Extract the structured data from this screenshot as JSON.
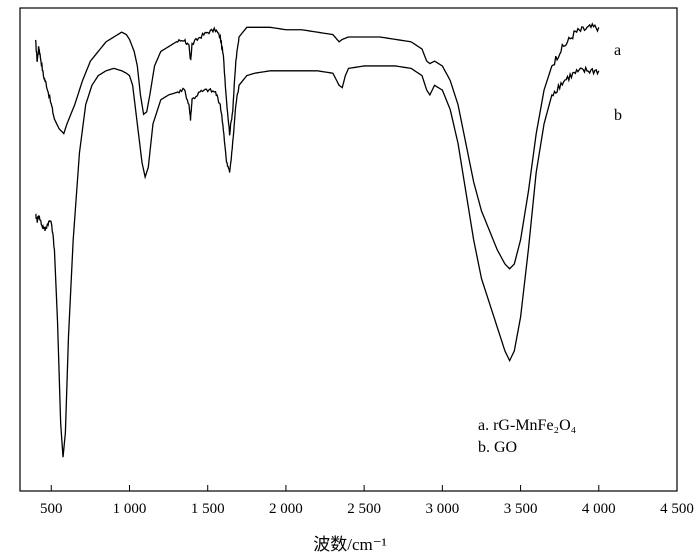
{
  "chart_data": {
    "type": "line",
    "title": "",
    "xlabel": "波数/cm⁻¹",
    "ylabel": "",
    "xlim": [
      300,
      4500
    ],
    "ylim": [
      0,
      100
    ],
    "grid": false,
    "x_ticks": [
      {
        "value": 500,
        "label": "500"
      },
      {
        "value": 1000,
        "label": "1 000"
      },
      {
        "value": 1500,
        "label": "1 500"
      },
      {
        "value": 2000,
        "label": "2 000"
      },
      {
        "value": 2500,
        "label": "2 500"
      },
      {
        "value": 3000,
        "label": "3 000"
      },
      {
        "value": 3500,
        "label": "3 500"
      },
      {
        "value": 4000,
        "label": "4 000"
      },
      {
        "value": 4500,
        "label": "4 500"
      }
    ],
    "legend": {
      "position": "bottom-right",
      "entries": [
        "a. rG-MnFe₂O₄",
        "b. GO"
      ]
    },
    "series": [
      {
        "label": "a",
        "points": [
          [
            400,
            93
          ],
          [
            410,
            89
          ],
          [
            420,
            92
          ],
          [
            430,
            90
          ],
          [
            450,
            86
          ],
          [
            470,
            84
          ],
          [
            500,
            80
          ],
          [
            520,
            77
          ],
          [
            550,
            75
          ],
          [
            580,
            74
          ],
          [
            600,
            76
          ],
          [
            650,
            80
          ],
          [
            700,
            85
          ],
          [
            750,
            89
          ],
          [
            800,
            91
          ],
          [
            850,
            93
          ],
          [
            900,
            94
          ],
          [
            950,
            95
          ],
          [
            980,
            94.5
          ],
          [
            1000,
            93.5
          ],
          [
            1030,
            91
          ],
          [
            1050,
            88
          ],
          [
            1070,
            82
          ],
          [
            1090,
            78
          ],
          [
            1110,
            78.5
          ],
          [
            1130,
            82
          ],
          [
            1160,
            88
          ],
          [
            1200,
            91
          ],
          [
            1250,
            92
          ],
          [
            1300,
            93
          ],
          [
            1350,
            93.5
          ],
          [
            1380,
            92
          ],
          [
            1390,
            89
          ],
          [
            1400,
            92.5
          ],
          [
            1450,
            94
          ],
          [
            1500,
            95
          ],
          [
            1550,
            95.5
          ],
          [
            1580,
            94
          ],
          [
            1600,
            90
          ],
          [
            1620,
            81
          ],
          [
            1640,
            74
          ],
          [
            1660,
            79
          ],
          [
            1680,
            89
          ],
          [
            1700,
            94
          ],
          [
            1750,
            96
          ],
          [
            1800,
            96
          ],
          [
            1900,
            96
          ],
          [
            2000,
            95.5
          ],
          [
            2100,
            95.5
          ],
          [
            2200,
            95
          ],
          [
            2300,
            94.5
          ],
          [
            2340,
            93
          ],
          [
            2360,
            93.5
          ],
          [
            2400,
            94
          ],
          [
            2500,
            94
          ],
          [
            2600,
            94
          ],
          [
            2700,
            93.5
          ],
          [
            2800,
            93
          ],
          [
            2870,
            91.5
          ],
          [
            2900,
            89
          ],
          [
            2920,
            88.5
          ],
          [
            2950,
            89
          ],
          [
            3000,
            88
          ],
          [
            3050,
            85
          ],
          [
            3100,
            80
          ],
          [
            3150,
            72
          ],
          [
            3200,
            64
          ],
          [
            3250,
            58
          ],
          [
            3300,
            54
          ],
          [
            3350,
            50
          ],
          [
            3400,
            47
          ],
          [
            3430,
            46
          ],
          [
            3460,
            47
          ],
          [
            3500,
            52
          ],
          [
            3550,
            62
          ],
          [
            3600,
            74
          ],
          [
            3650,
            83
          ],
          [
            3700,
            88
          ],
          [
            3750,
            91
          ],
          [
            3800,
            93
          ],
          [
            3850,
            95
          ],
          [
            3900,
            95.5
          ],
          [
            3950,
            96
          ],
          [
            4000,
            96
          ]
        ]
      },
      {
        "label": "b",
        "points": [
          [
            400,
            57
          ],
          [
            410,
            56
          ],
          [
            420,
            57
          ],
          [
            440,
            55
          ],
          [
            460,
            54
          ],
          [
            480,
            55.5
          ],
          [
            500,
            56
          ],
          [
            520,
            50
          ],
          [
            540,
            35
          ],
          [
            560,
            14
          ],
          [
            575,
            7
          ],
          [
            590,
            12
          ],
          [
            610,
            32
          ],
          [
            640,
            52
          ],
          [
            680,
            70
          ],
          [
            720,
            80
          ],
          [
            760,
            84
          ],
          [
            800,
            86
          ],
          [
            850,
            87
          ],
          [
            900,
            87.5
          ],
          [
            950,
            87
          ],
          [
            980,
            86.5
          ],
          [
            1000,
            86
          ],
          [
            1020,
            84
          ],
          [
            1050,
            76
          ],
          [
            1080,
            68
          ],
          [
            1100,
            65
          ],
          [
            1120,
            67
          ],
          [
            1150,
            76
          ],
          [
            1200,
            81
          ],
          [
            1250,
            82
          ],
          [
            1300,
            82.5
          ],
          [
            1350,
            83
          ],
          [
            1380,
            80
          ],
          [
            1390,
            77
          ],
          [
            1400,
            81
          ],
          [
            1450,
            82.5
          ],
          [
            1500,
            83
          ],
          [
            1550,
            82.5
          ],
          [
            1580,
            80
          ],
          [
            1600,
            75
          ],
          [
            1620,
            68
          ],
          [
            1640,
            66
          ],
          [
            1660,
            72
          ],
          [
            1680,
            80
          ],
          [
            1700,
            84
          ],
          [
            1750,
            86
          ],
          [
            1800,
            86.5
          ],
          [
            1900,
            87
          ],
          [
            2000,
            87
          ],
          [
            2100,
            87
          ],
          [
            2200,
            87
          ],
          [
            2300,
            86.5
          ],
          [
            2340,
            84
          ],
          [
            2360,
            83.5
          ],
          [
            2380,
            86
          ],
          [
            2400,
            87.5
          ],
          [
            2500,
            88
          ],
          [
            2600,
            88
          ],
          [
            2700,
            88
          ],
          [
            2800,
            87.5
          ],
          [
            2870,
            86
          ],
          [
            2900,
            83
          ],
          [
            2920,
            82
          ],
          [
            2950,
            84
          ],
          [
            3000,
            83
          ],
          [
            3050,
            79
          ],
          [
            3100,
            72
          ],
          [
            3150,
            62
          ],
          [
            3200,
            52
          ],
          [
            3250,
            44
          ],
          [
            3300,
            39
          ],
          [
            3350,
            34
          ],
          [
            3400,
            29
          ],
          [
            3430,
            27
          ],
          [
            3460,
            29
          ],
          [
            3500,
            36
          ],
          [
            3550,
            50
          ],
          [
            3600,
            66
          ],
          [
            3650,
            76
          ],
          [
            3700,
            82
          ],
          [
            3750,
            84
          ],
          [
            3800,
            85.5
          ],
          [
            3850,
            86.5
          ],
          [
            3900,
            87
          ],
          [
            3950,
            87
          ],
          [
            4000,
            87
          ]
        ]
      }
    ]
  },
  "colors": {
    "line": "#000000",
    "axis": "#000000",
    "background": "#ffffff"
  }
}
